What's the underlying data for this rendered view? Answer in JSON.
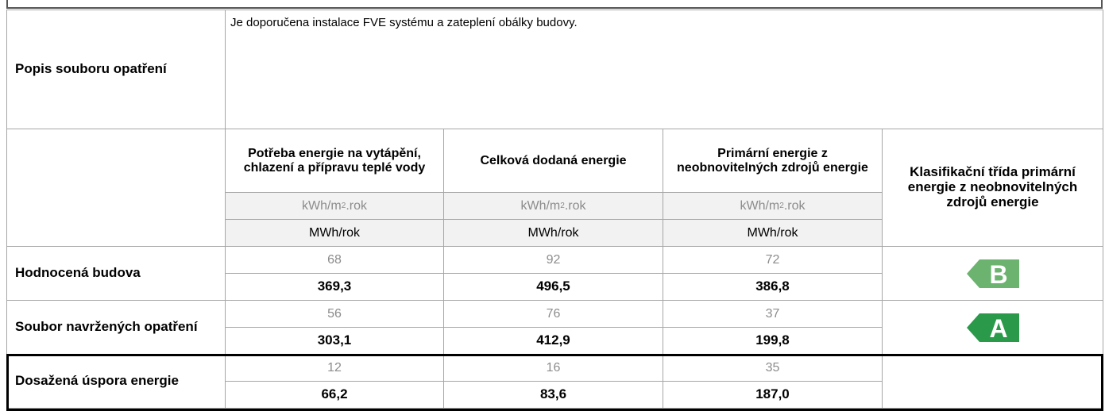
{
  "description": {
    "label": "Popis souboru opatření",
    "text": "Je doporučena instalace FVE systému a zateplení obálky budovy."
  },
  "columns": [
    "Potřeba energie na vytápění, chlazení a přípravu teplé vody",
    "Celková dodaná energie",
    "Primární energie z neobnovitelných zdrojů energie"
  ],
  "class_header": "Klasifikační třída primární energie z neobnovitelných zdrojů energie",
  "unit_area": {
    "base": "kWh/m",
    "sup": "2",
    "rest": ".rok"
  },
  "unit_total": "MWh/rok",
  "rows": [
    {
      "label": "Hodnocená budova",
      "specific": [
        "68",
        "92",
        "72"
      ],
      "total": [
        "369,3",
        "496,5",
        "386,8"
      ],
      "class": "B",
      "class_color": "#6bb36e"
    },
    {
      "label": "Soubor navržených opatření",
      "specific": [
        "56",
        "76",
        "37"
      ],
      "total": [
        "303,1",
        "412,9",
        "199,8"
      ],
      "class": "A",
      "class_color": "#2a9a4a"
    },
    {
      "label": "Dosažená úspora energie",
      "specific": [
        "12",
        "16",
        "35"
      ],
      "total": [
        "66,2",
        "83,6",
        "187,0"
      ]
    }
  ]
}
